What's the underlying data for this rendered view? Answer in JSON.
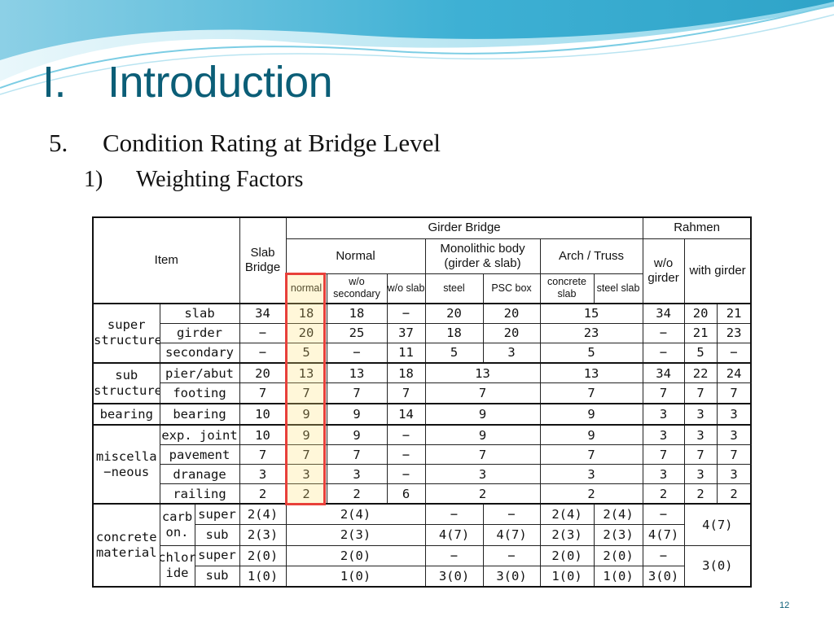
{
  "slide": {
    "title_number": "I.",
    "title": "Introduction",
    "section_number": "5.",
    "section_title": "Condition Rating at Bridge Level",
    "subsection_number": "1)",
    "subsection_title": "Weighting Factors",
    "page_number": "12",
    "colors": {
      "title": "#0b5e77",
      "highlight_border": "#e8403a",
      "wave_dark": "#1e9bc2",
      "wave_light": "#bfe8f3"
    }
  },
  "table": {
    "header": {
      "item": "Item",
      "slab_bridge": "Slab Bridge",
      "girder_bridge": "Girder Bridge",
      "rahmen": "Rahmen",
      "normal": "Normal",
      "monolithic": "Monolithic body (girder & slab)",
      "arch_truss": "Arch / Truss",
      "wo_girder": "w/o girder",
      "with_girder": "with girder",
      "normal_sub": "normal",
      "wo_secondary": "w/o secondary",
      "wo_slab": "w/o slab",
      "steel": "steel",
      "psc_box": "PSC box",
      "concrete_slab": "concrete slab",
      "steel_slab": "steel slab"
    },
    "groups": {
      "super": "super structure",
      "sub": "sub structure",
      "bearing": "bearing",
      "misc": "miscella −neous",
      "concrete": "concrete material",
      "carbon": "carb on.",
      "chloride": "chlor ide"
    },
    "rows": {
      "slab": {
        "label": "slab",
        "values": [
          "34",
          "18",
          "18",
          "−",
          "20",
          "20",
          "15",
          "34",
          "20",
          "21"
        ]
      },
      "girder": {
        "label": "girder",
        "values": [
          "−",
          "20",
          "25",
          "37",
          "18",
          "20",
          "23",
          "−",
          "21",
          "23"
        ]
      },
      "secondary": {
        "label": "secondary",
        "values": [
          "−",
          "5",
          "−",
          "11",
          "5",
          "3",
          "5",
          "−",
          "5",
          "−"
        ]
      },
      "pier": {
        "label": "pier/abut",
        "values": [
          "20",
          "13",
          "13",
          "18",
          "13",
          "13",
          "34",
          "22",
          "24"
        ]
      },
      "footing": {
        "label": "footing",
        "values": [
          "7",
          "7",
          "7",
          "7",
          "7",
          "7",
          "7",
          "7",
          "7"
        ]
      },
      "bearing": {
        "label": "bearing",
        "values": [
          "10",
          "9",
          "9",
          "14",
          "9",
          "9",
          "3",
          "3",
          "3"
        ]
      },
      "expjoint": {
        "label": "exp. joint",
        "values": [
          "10",
          "9",
          "9",
          "−",
          "9",
          "9",
          "3",
          "3",
          "3"
        ]
      },
      "pavement": {
        "label": "pavement",
        "values": [
          "7",
          "7",
          "7",
          "−",
          "7",
          "7",
          "7",
          "7",
          "7"
        ]
      },
      "dranage": {
        "label": "dranage",
        "values": [
          "3",
          "3",
          "3",
          "−",
          "3",
          "3",
          "3",
          "3",
          "3"
        ]
      },
      "railing": {
        "label": "railing",
        "values": [
          "2",
          "2",
          "2",
          "6",
          "2",
          "2",
          "2",
          "2",
          "2"
        ]
      },
      "carb_super": {
        "label": "super",
        "values": [
          "2(4)",
          "2(4)",
          "−",
          "−",
          "2(4)",
          "2(4)",
          "−",
          "4(7)"
        ]
      },
      "carb_sub": {
        "label": "sub",
        "values": [
          "2(3)",
          "2(3)",
          "4(7)",
          "4(7)",
          "2(3)",
          "2(3)",
          "4(7)"
        ]
      },
      "chl_super": {
        "label": "super",
        "values": [
          "2(0)",
          "2(0)",
          "−",
          "−",
          "2(0)",
          "2(0)",
          "−",
          "3(0)"
        ]
      },
      "chl_sub": {
        "label": "sub",
        "values": [
          "1(0)",
          "1(0)",
          "3(0)",
          "3(0)",
          "1(0)",
          "1(0)",
          "3(0)"
        ]
      }
    }
  }
}
